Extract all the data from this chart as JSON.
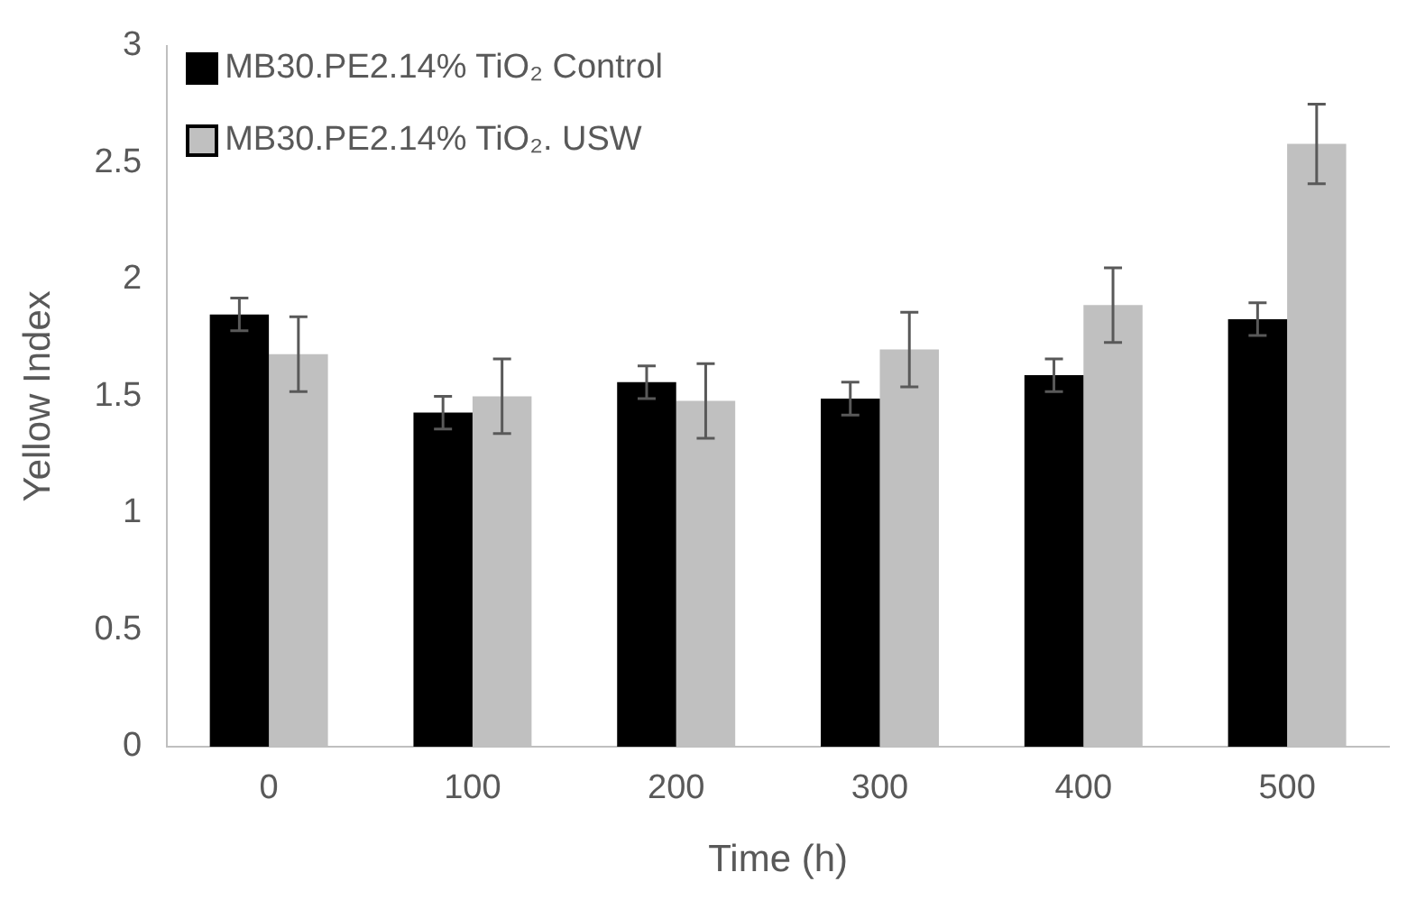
{
  "chart_data": {
    "type": "bar",
    "xlabel": "Time (h)",
    "ylabel": "Yellow Index",
    "categories": [
      "0",
      "100",
      "200",
      "300",
      "400",
      "500"
    ],
    "series": [
      {
        "name": "MB30.PE2.14% TiO₂ Control",
        "color": "#000000",
        "values": [
          1.85,
          1.43,
          1.56,
          1.49,
          1.59,
          1.83
        ],
        "errors": [
          0.07,
          0.07,
          0.07,
          0.07,
          0.07,
          0.07
        ]
      },
      {
        "name": "MB30.PE2.14% TiO₂. USW",
        "color": "#c0c0c0",
        "values": [
          1.68,
          1.5,
          1.48,
          1.7,
          1.89,
          2.58
        ],
        "errors": [
          0.16,
          0.16,
          0.16,
          0.16,
          0.16,
          0.17
        ]
      }
    ],
    "ylim": [
      0,
      3
    ],
    "yticks": [
      0,
      0.5,
      1,
      1.5,
      2,
      2.5,
      3
    ],
    "grid": false,
    "legend": "top left"
  }
}
